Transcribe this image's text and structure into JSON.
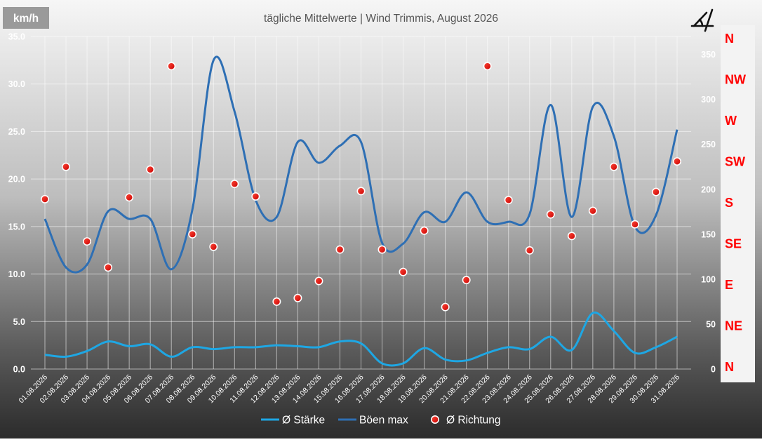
{
  "chart_data": {
    "type": "line",
    "title": "tägliche Mittelwerte | Wind Trimmis, August 2026",
    "unit_label": "km/h",
    "compass_icon": "angle-icon",
    "categories": [
      "01.08.2026",
      "02.08.2026",
      "03.08.2026",
      "04.08.2026",
      "05.08.2026",
      "06.08.2026",
      "07.08.2026",
      "08.08.2026",
      "09.08.2026",
      "10.08.2026",
      "11.08.2026",
      "12.08.2026",
      "13.08.2026",
      "14.08.2026",
      "15.08.2026",
      "16.08.2026",
      "17.08.2026",
      "18.08.2026",
      "19.08.2026",
      "20.08.2026",
      "21.08.2026",
      "22.08.2026",
      "23.08.2026",
      "24.08.2026",
      "25.08.2026",
      "26.08.2026",
      "27.08.2026",
      "28.08.2026",
      "29.08.2026",
      "30.08.2026",
      "31.08.2026"
    ],
    "y_left": {
      "min": 0,
      "max": 35,
      "ticks": [
        "0.0",
        "5.0",
        "10.0",
        "15.0",
        "20.0",
        "25.0",
        "30.0",
        "35.0"
      ]
    },
    "y_right": {
      "min": 0,
      "max": 370,
      "ticks": [
        "0",
        "50",
        "100",
        "150",
        "200",
        "250",
        "300",
        "350"
      ]
    },
    "direction_labels": [
      "N",
      "NW",
      "W",
      "SW",
      "S",
      "SE",
      "E",
      "NE",
      "N"
    ],
    "series": [
      {
        "name": "Ø Stärke",
        "axis": "left",
        "color": "#1ea7e4",
        "values": [
          1.5,
          1.3,
          1.9,
          2.9,
          2.4,
          2.6,
          1.3,
          2.3,
          2.1,
          2.3,
          2.3,
          2.5,
          2.4,
          2.3,
          2.9,
          2.7,
          0.6,
          0.6,
          2.2,
          1.0,
          0.9,
          1.7,
          2.3,
          2.1,
          3.4,
          2.0,
          5.9,
          4.0,
          1.7,
          2.3,
          3.4
        ]
      },
      {
        "name": "Böen max",
        "axis": "left",
        "color": "#2e6fb4",
        "values": [
          15.8,
          10.7,
          11.0,
          16.6,
          15.8,
          15.8,
          10.5,
          16.8,
          32.5,
          27.1,
          17.8,
          16.0,
          23.9,
          21.7,
          23.5,
          23.9,
          13.3,
          13.2,
          16.5,
          15.5,
          18.6,
          15.5,
          15.5,
          16.3,
          27.8,
          16.0,
          27.6,
          24.5,
          15.0,
          16.2,
          25.2
        ]
      },
      {
        "name": "Ø Richtung",
        "axis": "right",
        "color": "#ff0000",
        "values": [
          189,
          225,
          142,
          113,
          191,
          222,
          337,
          150,
          136,
          206,
          192,
          75,
          79,
          98,
          133,
          198,
          133,
          108,
          154,
          69,
          99,
          337,
          188,
          132,
          172,
          148,
          176,
          225,
          161,
          197,
          231
        ]
      }
    ],
    "legend": {
      "position": "bottom"
    },
    "grid": true
  }
}
